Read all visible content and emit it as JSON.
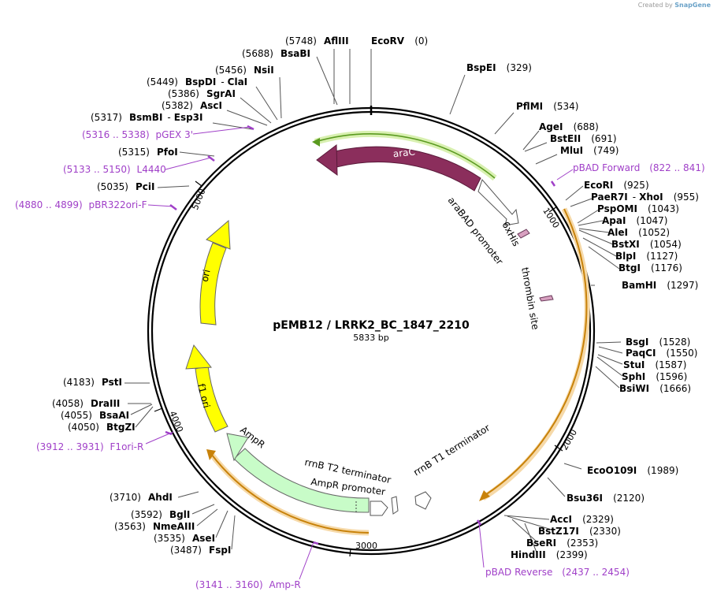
{
  "credit": {
    "prefix": "Created by",
    "brand": "SnapGene"
  },
  "plasmid": {
    "name": "pEMB12 / LRRK2_BC_1847_2210",
    "size": "5833 bp"
  },
  "ticks": [
    "1000",
    "2000",
    "3000",
    "4000",
    "5000"
  ],
  "features": {
    "araC": "araC",
    "araBAD": "araBAD promoter",
    "his": "6xHis",
    "thrombin": "thrombin site",
    "rrnB_T1": "rrnB T1 terminator",
    "rrnB_T2": "rrnB T2 terminator",
    "AmpR_promoter": "AmpR promoter",
    "AmpR": "AmpR",
    "f1ori": "f1 ori",
    "ori": "ori"
  },
  "sites": [
    {
      "id": "afliii",
      "pos": "(5748)",
      "name": "AflIII"
    },
    {
      "id": "ecorv",
      "name": "EcoRV",
      "pos": "(0)"
    },
    {
      "id": "bsaBI",
      "pos": "(5688)",
      "name": "BsaBI"
    },
    {
      "id": "bspei",
      "name": "BspEI",
      "pos": "(329)"
    },
    {
      "id": "nsii",
      "pos": "(5456)",
      "name": "NsiI"
    },
    {
      "id": "bspdi",
      "pos": "(5449)",
      "name": "BspDI",
      "sep": "-",
      "name2": "ClaI"
    },
    {
      "id": "pflmi",
      "name": "PflMI",
      "pos": "(534)"
    },
    {
      "id": "sgrai",
      "pos": "(5386)",
      "name": "SgrAI"
    },
    {
      "id": "asci",
      "pos": "(5382)",
      "name": "AscI"
    },
    {
      "id": "agei",
      "name": "AgeI",
      "pos": "(688)"
    },
    {
      "id": "bsmbi",
      "pos": "(5317)",
      "name": "BsmBI",
      "sep": "-",
      "name2": "Esp3I"
    },
    {
      "id": "bsteii",
      "name": "BstEII",
      "pos": "(691)"
    },
    {
      "id": "mlui",
      "name": "MluI",
      "pos": "(749)"
    },
    {
      "id": "pfoi",
      "pos": "(5315)",
      "name": "PfoI"
    },
    {
      "id": "pcii",
      "pos": "(5035)",
      "name": "PciI"
    },
    {
      "id": "ecori",
      "name": "EcoRI",
      "pos": "(925)"
    },
    {
      "id": "paer7i",
      "name": "PaeR7I",
      "sep": "-",
      "name2": "XhoI",
      "pos": "(955)"
    },
    {
      "id": "pspomi",
      "name": "PspOMI",
      "pos": "(1043)"
    },
    {
      "id": "apai",
      "name": "ApaI",
      "pos": "(1047)"
    },
    {
      "id": "alei",
      "name": "AleI",
      "pos": "(1052)"
    },
    {
      "id": "bstxi",
      "name": "BstXI",
      "pos": "(1054)"
    },
    {
      "id": "blpi",
      "name": "BlpI",
      "pos": "(1127)"
    },
    {
      "id": "btgi",
      "name": "BtgI",
      "pos": "(1176)"
    },
    {
      "id": "bamhi",
      "name": "BamHI",
      "pos": "(1297)"
    },
    {
      "id": "bsgi",
      "name": "BsgI",
      "pos": "(1528)"
    },
    {
      "id": "paqci",
      "name": "PaqCI",
      "pos": "(1550)"
    },
    {
      "id": "stui",
      "name": "StuI",
      "pos": "(1587)"
    },
    {
      "id": "sphi",
      "name": "SphI",
      "pos": "(1596)"
    },
    {
      "id": "bsiwi",
      "name": "BsiWI",
      "pos": "(1666)"
    },
    {
      "id": "psti",
      "pos": "(4183)",
      "name": "PstI"
    },
    {
      "id": "draiii",
      "pos": "(4058)",
      "name": "DraIII"
    },
    {
      "id": "bsaai",
      "pos": "(4055)",
      "name": "BsaAI"
    },
    {
      "id": "btgzi",
      "pos": "(4050)",
      "name": "BtgZI"
    },
    {
      "id": "ecoo109i",
      "name": "EcoO109I",
      "pos": "(1989)"
    },
    {
      "id": "bsu36i",
      "name": "Bsu36I",
      "pos": "(2120)"
    },
    {
      "id": "ahdi",
      "pos": "(3710)",
      "name": "AhdI"
    },
    {
      "id": "bgli",
      "pos": "(3592)",
      "name": "BglI"
    },
    {
      "id": "nmeaiii",
      "pos": "(3563)",
      "name": "NmeAIII"
    },
    {
      "id": "asei",
      "pos": "(3535)",
      "name": "AseI"
    },
    {
      "id": "fspi",
      "pos": "(3487)",
      "name": "FspI"
    },
    {
      "id": "acci",
      "name": "AccI",
      "pos": "(2329)"
    },
    {
      "id": "bstz17i",
      "name": "BstZ17I",
      "pos": "(2330)"
    },
    {
      "id": "bseri",
      "name": "BseRI",
      "pos": "(2353)"
    },
    {
      "id": "hindiii",
      "name": "HindIII",
      "pos": "(2399)"
    }
  ],
  "primers": [
    {
      "id": "pgex3",
      "range": "(5316 .. 5338)",
      "name": "pGEX 3'"
    },
    {
      "id": "l4440",
      "range": "(5133 .. 5150)",
      "name": "L4440"
    },
    {
      "id": "pbr322",
      "range": "(4880 .. 4899)",
      "name": "pBR322ori-F"
    },
    {
      "id": "pbadf",
      "name": "pBAD Forward",
      "range": "(822 .. 841)"
    },
    {
      "id": "f1orir",
      "range": "(3912 .. 3931)",
      "name": "F1ori-R"
    },
    {
      "id": "pbadr",
      "name": "pBAD Reverse",
      "range": "(2437 .. 2454)"
    },
    {
      "id": "ampr",
      "range": "(3141 .. 3160)",
      "name": "Amp-R"
    }
  ],
  "colors": {
    "araC": "#8b2e5c",
    "ori": "#ffff00",
    "AmpR": "#c8fcc8",
    "insert": "#f0b040",
    "insertArc": "#c8820a",
    "araCglow": "#a8e070",
    "tag": "#d8a0c0",
    "primer": "#a040c8"
  }
}
